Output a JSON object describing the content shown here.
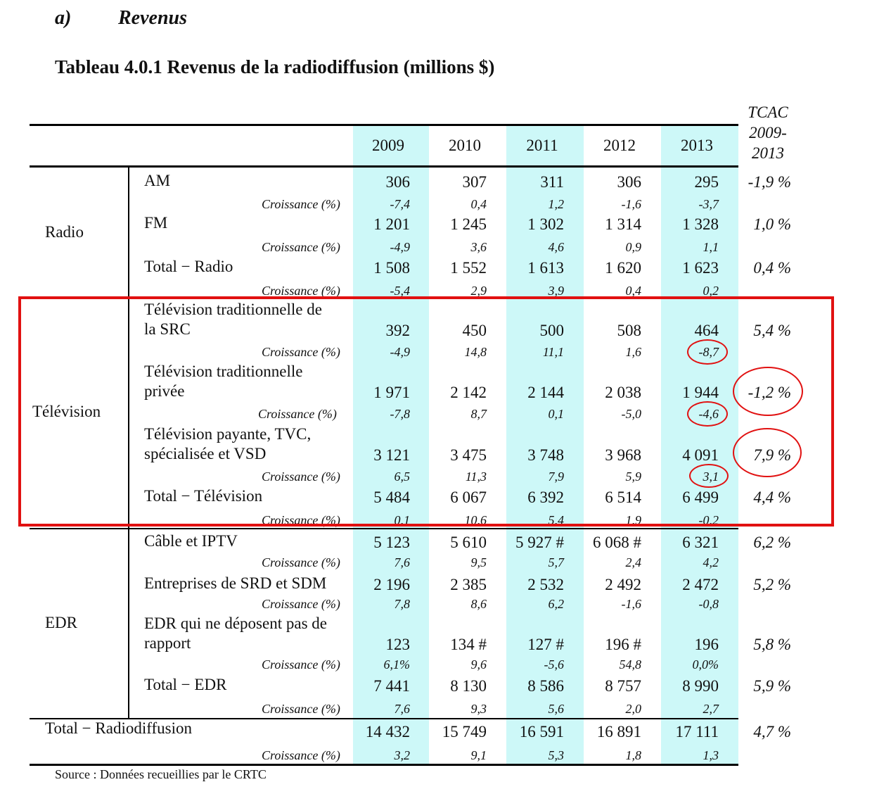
{
  "heading": {
    "letter": "a)",
    "title": "Revenus"
  },
  "table_title": "Tableau 4.0.1  Revenus de la radiodiffusion (millions $)",
  "columns": {
    "years": [
      "2009",
      "2010",
      "2011",
      "2012",
      "2013"
    ],
    "tcac": [
      "TCAC",
      "2009-",
      "2013"
    ]
  },
  "growth_label": "Croissance (%)",
  "groups": {
    "radio": "Radio",
    "television": "Télévision",
    "edr": "EDR"
  },
  "rows": [
    {
      "label": [
        "AM"
      ],
      "values": [
        "306",
        "307",
        "311",
        "306",
        "295"
      ],
      "tcac": "-1,9 %",
      "growth": [
        "-7,4",
        "0,4",
        "1,2",
        "-1,6",
        "-3,7"
      ]
    },
    {
      "label": [
        "FM"
      ],
      "values": [
        "1 201",
        "1 245",
        "1 302",
        "1 314",
        "1 328"
      ],
      "tcac": "1,0 %",
      "growth": [
        "-4,9",
        "3,6",
        "4,6",
        "0,9",
        "1,1"
      ]
    },
    {
      "label": [
        "Total − Radio"
      ],
      "values": [
        "1 508",
        "1 552",
        "1 613",
        "1 620",
        "1 623"
      ],
      "tcac": "0,4 %",
      "growth": [
        "-5,4",
        "2,9",
        "3,9",
        "0,4",
        "0,2"
      ]
    },
    {
      "label": [
        "Télévision traditionnelle de",
        "la SRC"
      ],
      "values": [
        "392",
        "450",
        "500",
        "508",
        "464"
      ],
      "tcac": "5,4 %",
      "growth": [
        "-4,9",
        "14,8",
        "11,1",
        "1,6",
        "-8,7"
      ]
    },
    {
      "label": [
        "Télévision traditionnelle",
        "privée"
      ],
      "values": [
        "1 971",
        "2 142",
        "2 144",
        "2 038",
        "1 944"
      ],
      "tcac": "-1,2 %",
      "growth": [
        "-7,8",
        "8,7",
        "0,1",
        "-5,0",
        "-4,6"
      ]
    },
    {
      "label": [
        "Télévision payante, TVC,",
        "spécialisée et VSD"
      ],
      "values": [
        "3 121",
        "3 475",
        "3 748",
        "3 968",
        "4 091"
      ],
      "tcac": "7,9 %",
      "growth": [
        "6,5",
        "11,3",
        "7,9",
        "5,9",
        "3,1"
      ]
    },
    {
      "label": [
        "Total − Télévision"
      ],
      "values": [
        "5 484",
        "6 067",
        "6 392",
        "6 514",
        "6 499"
      ],
      "tcac": "4,4 %",
      "growth": [
        "0,1",
        "10,6",
        "5,4",
        "1,9",
        "-0,2"
      ]
    },
    {
      "label": [
        "Câble et IPTV"
      ],
      "values": [
        "5 123",
        "5 610",
        "5 927 #",
        "6 068 #",
        "6 321"
      ],
      "tcac": "6,2 %",
      "growth": [
        "7,6",
        "9,5",
        "5,7",
        "2,4",
        "4,2"
      ]
    },
    {
      "label": [
        "Entreprises de SRD et SDM"
      ],
      "values": [
        "2 196",
        "2 385",
        "2 532",
        "2 492",
        "2 472"
      ],
      "tcac": "5,2 %",
      "growth": [
        "7,8",
        "8,6",
        "6,2",
        "-1,6",
        "-0,8"
      ]
    },
    {
      "label": [
        "EDR qui ne déposent pas de",
        "rapport"
      ],
      "values": [
        "123",
        "134 #",
        "127 #",
        "196 #",
        "196"
      ],
      "tcac": "5,8 %",
      "growth": [
        "6,1%",
        "9,6",
        "-5,6",
        "54,8",
        "0,0%"
      ]
    },
    {
      "label": [
        "Total − EDR"
      ],
      "values": [
        "7 441",
        "8 130",
        "8 586",
        "8 757",
        "8 990"
      ],
      "tcac": "5,9 %",
      "growth": [
        "7,6",
        "9,3",
        "5,6",
        "2,0",
        "2,7"
      ]
    },
    {
      "label": [
        "Total − Radiodiffusion"
      ],
      "values": [
        "14 432",
        "15 749",
        "16 591",
        "16 891",
        "17 111"
      ],
      "tcac": "4,7 %",
      "growth": [
        "3,2",
        "9,1",
        "5,3",
        "1,8",
        "1,3"
      ]
    }
  ],
  "source": "Source : Données recueillies par le CRTC",
  "annotation_color": "#e11111"
}
